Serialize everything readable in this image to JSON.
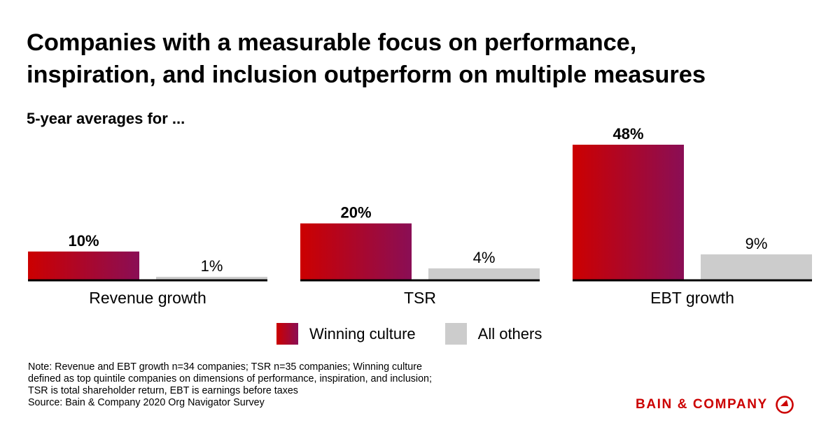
{
  "title_lines": [
    "Companies with a measurable focus on performance,",
    "inspiration, and inclusion outperform on multiple measures"
  ],
  "subtitle": "5-year averages for ...",
  "chart_data": {
    "type": "bar",
    "title": "Companies with a measurable focus on performance, inspiration, and inclusion outperform on multiple measures",
    "subtitle": "5-year averages for ...",
    "categories": [
      "Revenue growth",
      "TSR",
      "EBT growth"
    ],
    "series": [
      {
        "name": "Winning culture",
        "values": [
          10,
          20,
          48
        ],
        "labels": [
          "10%",
          "20%",
          "48%"
        ],
        "color_start": "#cc0000",
        "color_end": "#8a0e55",
        "label_bold": true
      },
      {
        "name": "All others",
        "values": [
          1,
          4,
          9
        ],
        "labels": [
          "1%",
          "4%",
          "9%"
        ],
        "color": "#cccccc",
        "label_bold": false
      }
    ],
    "unit": "%",
    "xlabel": "",
    "ylabel": "",
    "ylim": [
      0,
      48
    ],
    "grid": false,
    "legend_position": "bottom-center"
  },
  "legend": {
    "items": [
      {
        "label": "Winning culture"
      },
      {
        "label": "All others"
      }
    ]
  },
  "note_lines": [
    "Note: Revenue and EBT growth n=34 companies; TSR n=35 companies; Winning culture",
    "defined as top quintile companies on dimensions of performance, inspiration, and inclusion;",
    "TSR is total shareholder return, EBT is earnings before taxes",
    "Source: Bain & Company 2020 Org Navigator Survey"
  ],
  "brand": {
    "name": "BAIN & COMPANY",
    "color": "#cc0000",
    "icon": "bain-compass-icon"
  }
}
